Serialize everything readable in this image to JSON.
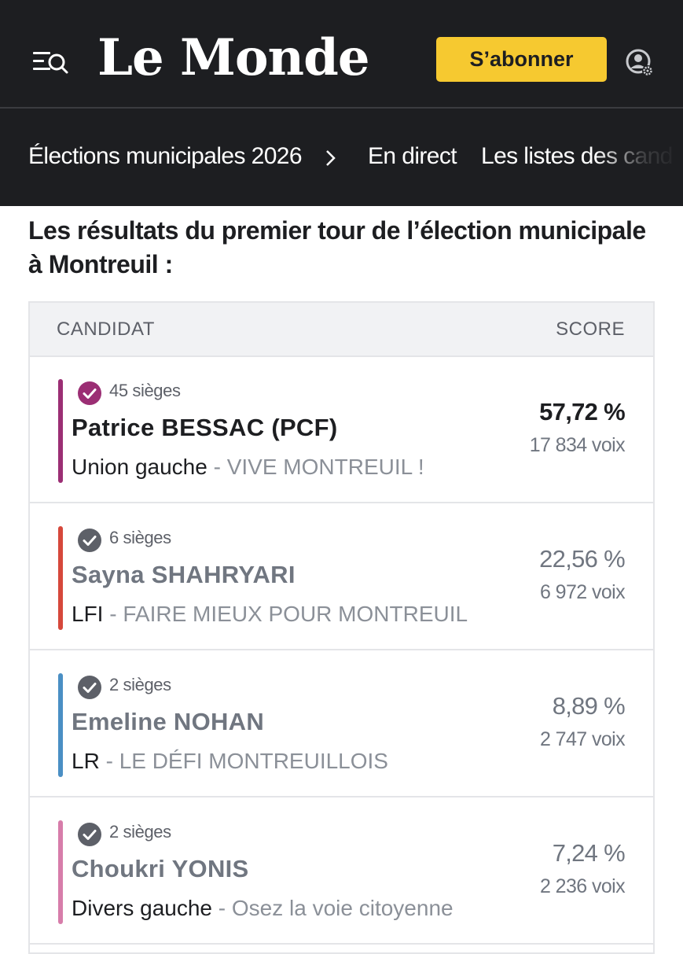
{
  "header": {
    "logo_text": "Le Monde",
    "subscribe_label": "S’abonner",
    "menu_icon": "menu-search-icon",
    "account_icon": "account-settings-icon"
  },
  "subnav": {
    "section": "Élections municipales 2026",
    "chevron_icon": "chevron-right-icon",
    "items": [
      "En direct",
      "Les listes des cand"
    ]
  },
  "headline": "Les résultats du premier tour de l’élection municipale à Montreuil :",
  "table": {
    "col_candidate": "CANDIDAT",
    "col_score": "SCORE",
    "rows": [
      {
        "seats": "45 sièges",
        "name": "Patrice BESSAC (PCF)",
        "party": "Union gauche",
        "separator": " - ",
        "list": "VIVE MONTREUIL !",
        "score": "57,72 %",
        "votes": "17 834 voix",
        "color": "#9b2e74",
        "check_color": "#9b2e74",
        "winner": true
      },
      {
        "seats": "6 sièges",
        "name": "Sayna SHAHRYARI",
        "party": "LFI",
        "separator": " - ",
        "list": "FAIRE MIEUX POUR MONTREUIL",
        "score": "22,56 %",
        "votes": "6 972 voix",
        "color": "#d6483b",
        "check_color": "#5d6068",
        "winner": false
      },
      {
        "seats": "2 sièges",
        "name": "Emeline NOHAN",
        "party": "LR",
        "separator": " - ",
        "list": "LE DÉFI MONTREUILLOIS",
        "score": "8,89 %",
        "votes": "2 747 voix",
        "color": "#4a8fc4",
        "check_color": "#5d6068",
        "winner": false
      },
      {
        "seats": "2 sièges",
        "name": "Choukri YONIS",
        "party": "Divers gauche",
        "separator": " - ",
        "list": "Osez la voie citoyenne",
        "score": "7,24 %",
        "votes": "2 236 voix",
        "color": "#d77daa",
        "check_color": "#5d6068",
        "winner": false
      }
    ]
  }
}
